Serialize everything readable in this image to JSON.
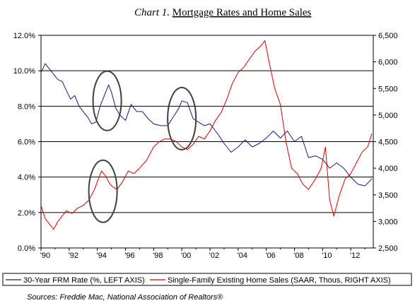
{
  "chart_data": {
    "type": "line",
    "title_italic": "Chart 1.",
    "title_main": "Mortgage Rates and Home Sales",
    "x_labels": [
      "'90",
      "'92",
      "'94",
      "'96",
      "'98",
      "'00",
      "'02",
      "'04",
      "'06",
      "'08",
      "'10",
      "'12"
    ],
    "xlim": [
      1990,
      2013.6
    ],
    "y_left": {
      "ticks": [
        "0.0%",
        "2.0%",
        "4.0%",
        "6.0%",
        "8.0%",
        "10.0%",
        "12.0%"
      ],
      "ylim": [
        0,
        12
      ]
    },
    "y_right": {
      "ticks": [
        "2,500",
        "3,000",
        "3,500",
        "4,000",
        "4,500",
        "5,000",
        "5,500",
        "6,000",
        "6,500"
      ],
      "ylim": [
        2500,
        6500
      ]
    },
    "grid": "horizontal",
    "legend_placement": "bottom",
    "series": [
      {
        "name": "30-Year FRM Rate (%, LEFT AXIS)",
        "axis": "left",
        "color": "#1a1a7a",
        "x": [
          1990.0,
          1990.3,
          1990.6,
          1990.9,
          1991.2,
          1991.5,
          1991.8,
          1992.1,
          1992.4,
          1992.7,
          1993.0,
          1993.3,
          1993.6,
          1993.9,
          1994.2,
          1994.5,
          1994.8,
          1995.0,
          1995.3,
          1995.6,
          1996.0,
          1996.4,
          1996.8,
          1997.2,
          1997.6,
          1998.0,
          1998.5,
          1999.0,
          1999.4,
          1999.8,
          2000.0,
          2000.4,
          2000.8,
          2001.2,
          2001.6,
          2002.0,
          2002.5,
          2003.0,
          2003.5,
          2004.0,
          2004.5,
          2005.0,
          2005.5,
          2006.0,
          2006.5,
          2007.0,
          2007.5,
          2008.0,
          2008.5,
          2009.0,
          2009.5,
          2010.0,
          2010.5,
          2011.0,
          2011.5,
          2012.0,
          2012.5,
          2013.0,
          2013.5
        ],
        "values": [
          9.9,
          10.4,
          10.1,
          9.8,
          9.5,
          9.4,
          8.9,
          8.4,
          8.6,
          8.0,
          7.7,
          7.4,
          7.0,
          7.1,
          8.0,
          8.6,
          9.2,
          8.8,
          7.9,
          7.5,
          7.2,
          8.1,
          7.7,
          7.7,
          7.3,
          7.0,
          6.9,
          6.9,
          7.4,
          7.9,
          8.3,
          8.2,
          7.3,
          7.1,
          6.9,
          7.0,
          6.5,
          5.9,
          5.4,
          5.7,
          6.1,
          5.7,
          5.9,
          6.2,
          6.6,
          6.2,
          6.6,
          6.0,
          6.3,
          5.1,
          5.2,
          5.0,
          4.5,
          4.8,
          4.5,
          4.0,
          3.6,
          3.5,
          3.9
        ]
      },
      {
        "name": "Single-Family Existing Home Sales (SAAR, Thous, RIGHT AXIS)",
        "axis": "right",
        "color": "#dd0000",
        "x": [
          1990.0,
          1990.3,
          1990.6,
          1990.9,
          1991.2,
          1991.5,
          1991.8,
          1992.2,
          1992.6,
          1993.0,
          1993.4,
          1993.8,
          1994.0,
          1994.3,
          1994.6,
          1994.9,
          1995.1,
          1995.4,
          1995.8,
          1996.2,
          1996.6,
          1997.0,
          1997.5,
          1998.0,
          1998.4,
          1998.8,
          1999.2,
          1999.6,
          2000.0,
          2000.4,
          2000.8,
          2001.2,
          2001.6,
          2002.0,
          2002.4,
          2002.8,
          2003.2,
          2003.6,
          2004.0,
          2004.4,
          2004.8,
          2005.2,
          2005.6,
          2005.9,
          2006.2,
          2006.6,
          2007.0,
          2007.4,
          2007.8,
          2008.2,
          2008.6,
          2009.0,
          2009.5,
          2009.9,
          2010.2,
          2010.5,
          2010.8,
          2011.2,
          2011.6,
          2012.0,
          2012.4,
          2012.8,
          2013.2,
          2013.5
        ],
        "values": [
          3300,
          3050,
          2950,
          2850,
          3000,
          3100,
          3200,
          3150,
          3250,
          3300,
          3400,
          3600,
          3750,
          3950,
          3850,
          3700,
          3650,
          3600,
          3750,
          3950,
          3900,
          4000,
          4150,
          4400,
          4500,
          4550,
          4550,
          4500,
          4400,
          4350,
          4450,
          4600,
          4550,
          4700,
          4900,
          5050,
          5300,
          5600,
          5800,
          5900,
          6050,
          6200,
          6300,
          6400,
          6000,
          5500,
          5200,
          4500,
          4000,
          3900,
          3700,
          3600,
          3800,
          4000,
          4400,
          3400,
          3100,
          3500,
          3800,
          3900,
          4100,
          4300,
          4400,
          4650
        ]
      }
    ]
  },
  "source_text": "Sources: Freddie Mac, National Association of Realtors®",
  "annotations": "ellipses"
}
